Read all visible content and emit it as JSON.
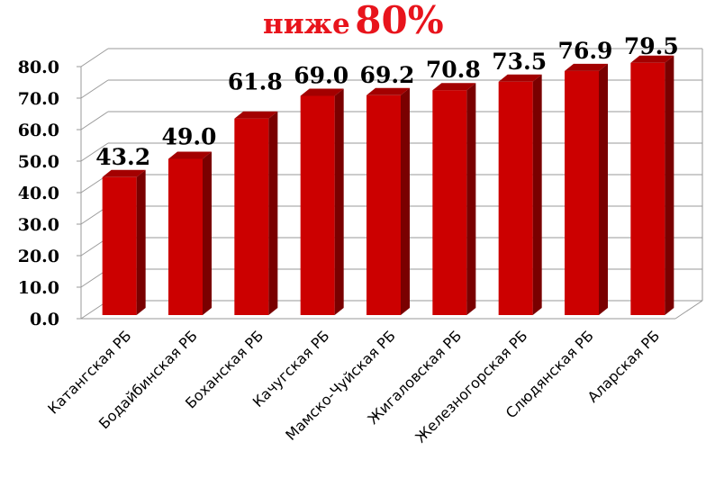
{
  "title_prefix": "ниже",
  "title_value": "80%",
  "chart_data": {
    "type": "bar",
    "categories": [
      "Катангская РБ",
      "Бодайбинская РБ",
      "Боханская РБ",
      "Качугская РБ",
      "Мамско-Чуйская РБ",
      "Жигаловская РБ",
      "Железногорская РБ",
      "Слюдянская РБ",
      "Аларская РБ"
    ],
    "values": [
      43.2,
      49.0,
      61.8,
      69.0,
      69.2,
      70.8,
      73.5,
      76.9,
      79.5
    ],
    "data_labels": [
      "43.2",
      "49.0",
      "61.8",
      "69.0",
      "69.2",
      "70.8",
      "73.5",
      "76.9",
      "79.5"
    ],
    "yticks": [
      "0.0",
      "10.0",
      "20.0",
      "30.0",
      "40.0",
      "50.0",
      "60.0",
      "70.0",
      "80.0"
    ],
    "ylim": [
      0,
      80
    ],
    "grid": true,
    "bar_color": "#cc0000",
    "bar_side_color": "#7a0000",
    "bar_top_color": "#a30000",
    "style": "3d-columns"
  }
}
